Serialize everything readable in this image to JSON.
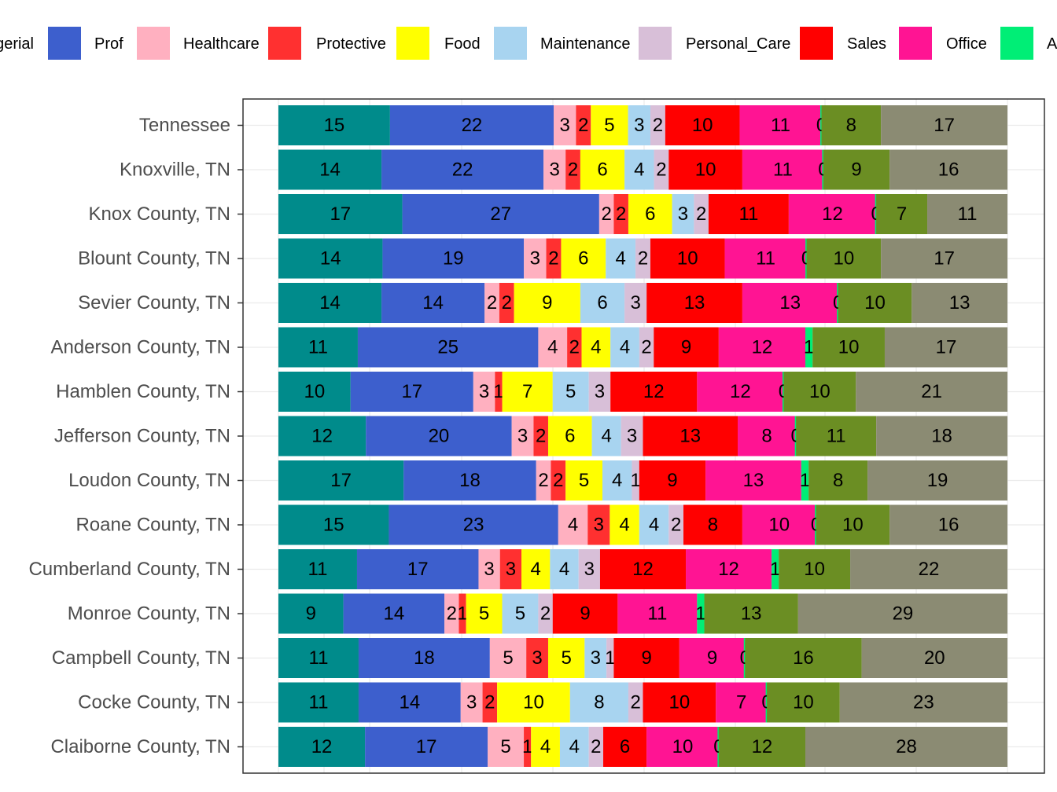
{
  "chart_data": {
    "type": "bar",
    "orientation": "horizontal",
    "stacked": true,
    "title": "",
    "xlabel": "",
    "ylabel": "",
    "grid": true,
    "legend_position": "top",
    "show_x_tick_labels": false,
    "categories": [
      "Tennessee",
      "Knoxville, TN",
      "Knox County, TN",
      "Blount County, TN",
      "Sevier County, TN",
      "Anderson County, TN",
      "Hamblen County, TN",
      "Jefferson County, TN",
      "Loudon County, TN",
      "Roane County, TN",
      "Cumberland County, TN",
      "Monroe County, TN",
      "Campbell County, TN",
      "Cocke County, TN",
      "Claiborne County, TN"
    ],
    "legend_items": [
      {
        "label": "Managerial",
        "visible_text": "gerial",
        "color": "#008B8B"
      },
      {
        "label": "Prof",
        "visible_text": "Prof",
        "color": "#3D5FCD"
      },
      {
        "label": "Healthcare",
        "visible_text": "Healthcare",
        "color": "#FFB0C0"
      },
      {
        "label": "Protective",
        "visible_text": "Protective",
        "color": "#FF3030"
      },
      {
        "label": "Food",
        "visible_text": "Food",
        "color": "#FFFF00"
      },
      {
        "label": "Maintenance",
        "visible_text": "Maintenance",
        "color": "#A8D4F0"
      },
      {
        "label": "Personal_Care",
        "visible_text": "Personal_Care",
        "color": "#D8BFD8"
      },
      {
        "label": "Sales",
        "visible_text": "Sales",
        "color": "#FF0000"
      },
      {
        "label": "Office",
        "visible_text": "Office",
        "color": "#FF1493"
      },
      {
        "label": "A",
        "visible_text": "A",
        "color": "#00EE76"
      }
    ],
    "series": [
      {
        "name": "Managerial",
        "color": "#008B8B",
        "values": [
          15,
          14,
          17,
          14,
          14,
          11,
          10,
          12,
          17,
          15,
          11,
          9,
          11,
          11,
          12
        ]
      },
      {
        "name": "Prof",
        "color": "#3D5FCD",
        "values": [
          22,
          22,
          27,
          19,
          14,
          25,
          17,
          20,
          18,
          23,
          17,
          14,
          18,
          14,
          17
        ]
      },
      {
        "name": "Healthcare",
        "color": "#FFB0C0",
        "values": [
          3,
          3,
          2,
          3,
          2,
          4,
          3,
          3,
          2,
          4,
          3,
          2,
          5,
          3,
          5
        ]
      },
      {
        "name": "Protective",
        "color": "#FF3030",
        "values": [
          2,
          2,
          2,
          2,
          2,
          2,
          1,
          2,
          2,
          3,
          3,
          1,
          3,
          2,
          1
        ]
      },
      {
        "name": "Food",
        "color": "#FFFF00",
        "values": [
          5,
          6,
          6,
          6,
          9,
          4,
          7,
          6,
          5,
          4,
          4,
          5,
          5,
          10,
          4
        ]
      },
      {
        "name": "Maintenance",
        "color": "#A8D4F0",
        "values": [
          3,
          4,
          3,
          4,
          6,
          4,
          5,
          4,
          4,
          4,
          4,
          5,
          3,
          8,
          4
        ]
      },
      {
        "name": "Personal_Care",
        "color": "#D8BFD8",
        "values": [
          2,
          2,
          2,
          2,
          3,
          2,
          3,
          3,
          1,
          2,
          3,
          2,
          1,
          2,
          2
        ]
      },
      {
        "name": "Sales",
        "color": "#FF0000",
        "values": [
          10,
          10,
          11,
          10,
          13,
          9,
          12,
          13,
          9,
          8,
          12,
          9,
          9,
          10,
          6
        ]
      },
      {
        "name": "Office",
        "color": "#FF1493",
        "values": [
          11,
          11,
          12,
          11,
          13,
          12,
          12,
          8,
          13,
          10,
          12,
          11,
          9,
          7,
          10
        ]
      },
      {
        "name": "A",
        "color": "#00EE76",
        "values": [
          0,
          0,
          0,
          0,
          0,
          1,
          0,
          0,
          1,
          0,
          1,
          1,
          0,
          0,
          0
        ]
      },
      {
        "name": "",
        "color": "#6B8E23",
        "values": [
          8,
          9,
          7,
          10,
          10,
          10,
          10,
          11,
          8,
          10,
          10,
          13,
          16,
          10,
          12
        ]
      },
      {
        "name": "",
        "color": "#8B8B73",
        "values": [
          17,
          16,
          11,
          17,
          13,
          17,
          21,
          18,
          19,
          16,
          22,
          29,
          20,
          23,
          28
        ]
      }
    ]
  }
}
